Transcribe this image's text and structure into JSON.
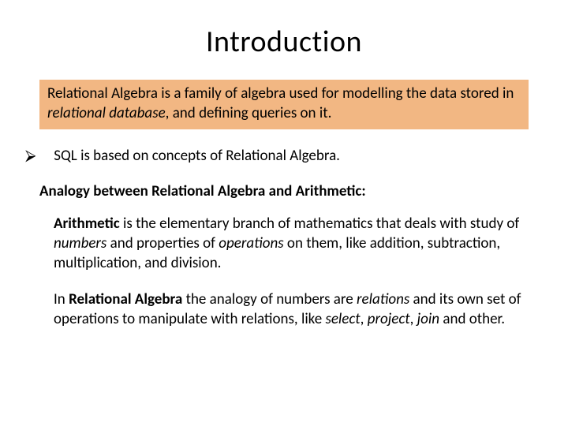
{
  "colors": {
    "background": "#ffffff",
    "text": "#000000",
    "highlight_bg": "#f2b783"
  },
  "fonts": {
    "family": "Calibri",
    "title_size_pt": 38,
    "body_size_pt": 19
  },
  "title": "Introduction",
  "highlight": {
    "pre": "Relational Algebra is a family of algebra used for modelling the data stored in ",
    "italic": "relational database",
    "post": ", and defining queries on it."
  },
  "bullet": {
    "marker": "⮚",
    "text": "SQL is based on concepts of Relational Algebra."
  },
  "subheading": "Analogy between Relational Algebra and Arithmetic:",
  "para1": {
    "bold1": "Arithmetic",
    "t1": " is the elementary branch of mathematics that deals with study of ",
    "it1": "numbers",
    "t2": " and properties of ",
    "it2": "operations",
    "t3": " on them, like addition, subtraction, multiplication, and division."
  },
  "para2": {
    "t1": "In ",
    "bold1": "Relational Algebra",
    "t2": " the analogy of numbers are ",
    "it1": "relations",
    "t3": " and its own set of operations to manipulate with relations, like ",
    "it2": "select",
    "t4": ", ",
    "it3": "project",
    "t5": ", ",
    "it4": "join",
    "t6": " and other."
  }
}
